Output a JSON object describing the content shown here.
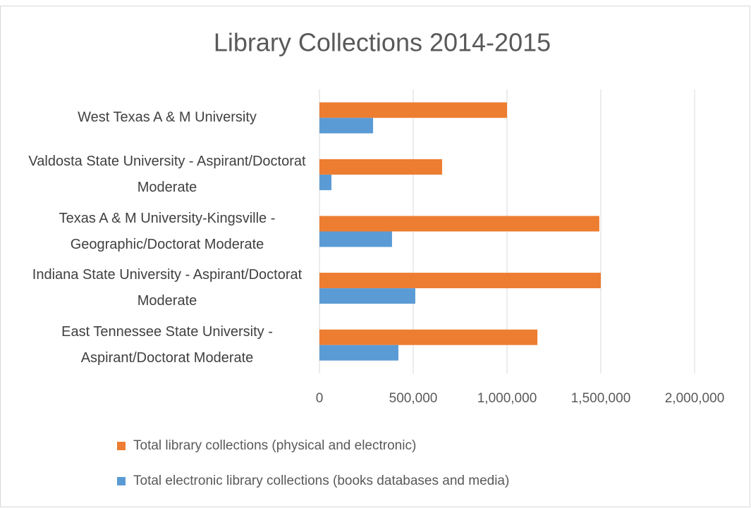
{
  "chart_data": {
    "type": "bar",
    "orientation": "horizontal",
    "title": "Library Collections 2014-2015",
    "categories": [
      "West Texas A & M University",
      "Valdosta State University - Aspirant/Doctorat Moderate",
      "Texas A & M University-Kingsville - Geographic/Doctorat Moderate",
      "Indiana State University - Aspirant/Doctorat Moderate",
      "East Tennessee State University - Aspirant/Doctorat Moderate"
    ],
    "series": [
      {
        "name": "Total library collections (physical and electronic)",
        "color": "#ed7d31",
        "values": [
          1000000,
          654000,
          1492000,
          1500000,
          1162000
        ]
      },
      {
        "name": "Total electronic library collections (books  databases and media)",
        "color": "#5b9bd5",
        "values": [
          286000,
          64000,
          387000,
          511000,
          421000
        ]
      }
    ],
    "xlim": [
      0,
      2000000
    ],
    "xticks": [
      0,
      {
        "value": 500000,
        "label": "500,000"
      },
      {
        "value": 1000000,
        "label": "1,000,000"
      },
      {
        "value": 1500000,
        "label": "1,500,000"
      },
      {
        "value": 2000000,
        "label": "2,000,000"
      }
    ],
    "grid": true,
    "legend": "bottom"
  }
}
